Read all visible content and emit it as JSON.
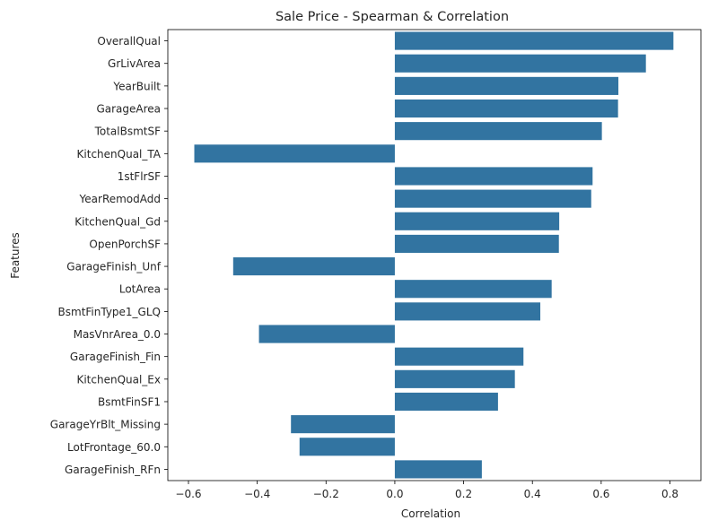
{
  "chart_data": {
    "type": "bar",
    "orientation": "horizontal",
    "title": "Sale Price - Spearman & Correlation",
    "xlabel": "Correlation",
    "ylabel": "Features",
    "xlim": [
      -0.66,
      0.89
    ],
    "xticks": [
      -0.6,
      -0.4,
      -0.2,
      0.0,
      0.2,
      0.4,
      0.6,
      0.8
    ],
    "xtick_labels": [
      "−0.6",
      "−0.4",
      "−0.2",
      "0.0",
      "0.2",
      "0.4",
      "0.6",
      "0.8"
    ],
    "grid": false,
    "bar_color": "#3274a1",
    "categories": [
      "OverallQual",
      "GrLivArea",
      "YearBuilt",
      "GarageArea",
      "TotalBsmtSF",
      "KitchenQual_TA",
      "1stFlrSF",
      "YearRemodAdd",
      "KitchenQual_Gd",
      "OpenPorchSF",
      "GarageFinish_Unf",
      "LotArea",
      "BsmtFinType1_GLQ",
      "MasVnrArea_0.0",
      "GarageFinish_Fin",
      "KitchenQual_Ex",
      "BsmtFinSF1",
      "GarageYrBlt_Missing",
      "LotFrontage_60.0",
      "GarageFinish_RFn"
    ],
    "values": [
      0.81,
      0.73,
      0.65,
      0.649,
      0.602,
      -0.583,
      0.575,
      0.571,
      0.478,
      0.477,
      -0.47,
      0.456,
      0.423,
      -0.395,
      0.374,
      0.349,
      0.3,
      -0.302,
      -0.277,
      0.253
    ]
  }
}
